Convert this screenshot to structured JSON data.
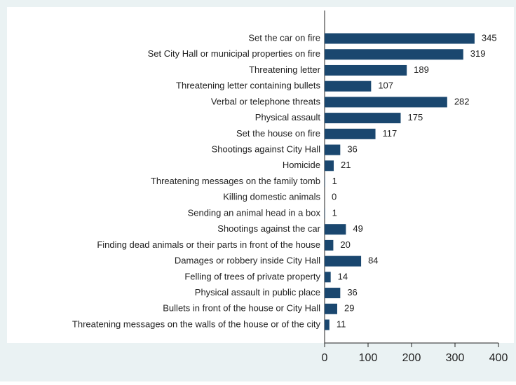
{
  "chart_data": {
    "type": "bar",
    "orientation": "horizontal",
    "categories": [
      "Set the car on fire",
      "Set City Hall or municipal properties on fire",
      "Threatening letter",
      "Threatening letter containing bullets",
      "Verbal or telephone threats",
      "Physical assault",
      "Set the house on fire",
      "Shootings against City Hall",
      "Homicide",
      "Threatening messages on the family tomb",
      "Killing domestic animals",
      "Sending an animal head in a box",
      "Shootings against the car",
      "Finding dead animals or their parts in front of the house",
      "Damages or robbery inside City Hall",
      "Felling of trees of private property",
      "Physical assault in public place",
      "Bullets in front of the house or City Hall",
      "Threatening messages on the walls of the house or of the city"
    ],
    "values": [
      345,
      319,
      189,
      107,
      282,
      175,
      117,
      36,
      21,
      1,
      0,
      1,
      49,
      20,
      84,
      14,
      36,
      29,
      11
    ],
    "color": "#1a476f",
    "xlim": [
      0,
      400
    ],
    "xticks": [
      0,
      100,
      200,
      300,
      400
    ],
    "grid": false
  }
}
